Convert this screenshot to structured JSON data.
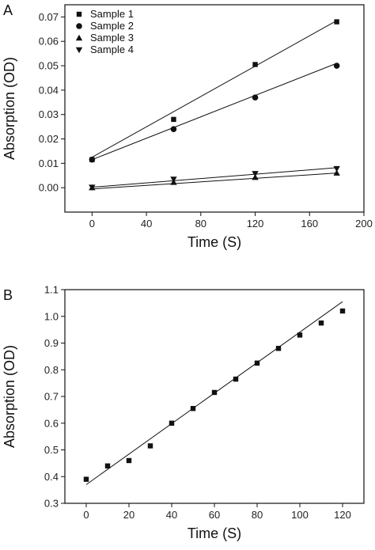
{
  "chart_data": [
    {
      "type": "scatter",
      "panel_label": "A",
      "xlabel": "Time (S)",
      "ylabel": "Absorption (OD)",
      "xlim": [
        -20,
        200
      ],
      "ylim": [
        -0.01,
        0.075
      ],
      "x_ticks": [
        "0",
        "40",
        "80",
        "120",
        "160",
        "200"
      ],
      "y_ticks": [
        "0.00",
        "0.01",
        "0.02",
        "0.03",
        "0.04",
        "0.05",
        "0.06",
        "0.07"
      ],
      "x": [
        0,
        60,
        120,
        180
      ],
      "legend_position": "top-left",
      "series": [
        {
          "name": "Sample 1",
          "marker": "square",
          "values": [
            0.0115,
            0.028,
            0.0505,
            0.068
          ],
          "fit": [
            0.0125,
            0.0685
          ]
        },
        {
          "name": "Sample 2",
          "marker": "circle",
          "values": [
            0.0115,
            0.024,
            0.037,
            0.05
          ],
          "fit": [
            0.0115,
            0.051
          ]
        },
        {
          "name": "Sample 3",
          "marker": "triangle-up",
          "values": [
            0.0,
            0.0022,
            0.0042,
            0.006
          ],
          "fit": [
            -0.0005,
            0.006
          ]
        },
        {
          "name": "Sample 4",
          "marker": "triangle-down",
          "values": [
            0.0002,
            0.0035,
            0.0058,
            0.0078
          ],
          "fit": [
            0.0002,
            0.0082
          ]
        }
      ]
    },
    {
      "type": "scatter",
      "panel_label": "B",
      "xlabel": "Time (S)",
      "ylabel": "Absorption (OD)",
      "xlim": [
        -10,
        130
      ],
      "ylim": [
        0.3,
        1.1
      ],
      "x_ticks": [
        "0",
        "20",
        "40",
        "60",
        "80",
        "100",
        "120"
      ],
      "y_ticks": [
        "0.3",
        "0.4",
        "0.5",
        "0.6",
        "0.7",
        "0.8",
        "0.9",
        "1.0",
        "1.1"
      ],
      "series": [
        {
          "marker": "square",
          "x": [
            0,
            10,
            20,
            30,
            40,
            50,
            60,
            70,
            80,
            90,
            100,
            110,
            120
          ],
          "values": [
            0.39,
            0.44,
            0.46,
            0.515,
            0.6,
            0.655,
            0.715,
            0.765,
            0.825,
            0.88,
            0.93,
            0.975,
            1.02
          ],
          "fit": [
            0.37,
            1.055
          ]
        }
      ]
    }
  ]
}
